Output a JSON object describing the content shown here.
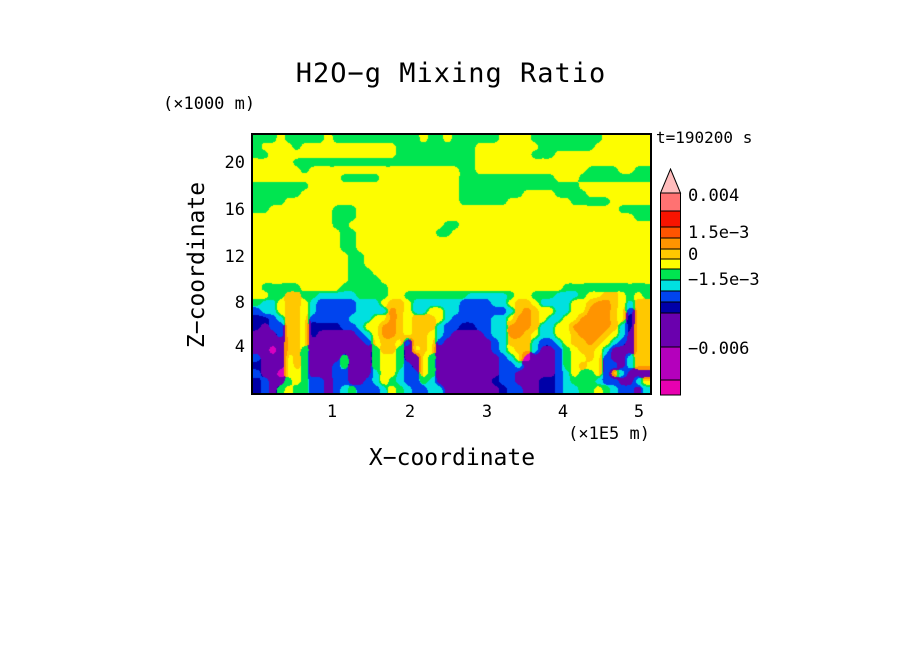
{
  "title": "H2O−g Mixing Ratio",
  "time_label": "t=190200 s",
  "x_axis": {
    "label": "X−coordinate",
    "unit": "(×1E5 m)",
    "ticks": [
      "1",
      "2",
      "3",
      "4",
      "5"
    ]
  },
  "y_axis": {
    "label": "Z−coordinate",
    "unit": "(×1000 m)",
    "ticks": [
      "20",
      "16",
      "12",
      "8",
      "4"
    ]
  },
  "colorbar": {
    "arrow_color": "#ffbcbc",
    "outline_color": "#000000",
    "segments": [
      {
        "color": "#ff7272",
        "h": 18
      },
      {
        "color": "#f81400",
        "h": 16
      },
      {
        "color": "#ff5400",
        "h": 11
      },
      {
        "color": "#ff9400",
        "h": 11
      },
      {
        "color": "#ffc800",
        "h": 10
      },
      {
        "color": "#fdfd00",
        "h": 10
      },
      {
        "color": "#00e550",
        "h": 11
      },
      {
        "color": "#00e0e0",
        "h": 11
      },
      {
        "color": "#0044ee",
        "h": 11
      },
      {
        "color": "#0000a8",
        "h": 11
      },
      {
        "color": "#6a00ae",
        "h": 34
      },
      {
        "color": "#b400bc",
        "h": 33
      },
      {
        "color": "#e800b0",
        "h": 15
      }
    ],
    "labels": [
      "0.004",
      "1.5e−3",
      "0",
      "−1.5e−3",
      "−0.006"
    ]
  },
  "chart_data": {
    "type": "heatmap",
    "title": "H2O-g Mixing Ratio",
    "time": "t=190200 s",
    "xlabel": "X-coordinate (x1E5 m)",
    "zlabel": "Z-coordinate (x1000 m)",
    "x_ticks": [
      1,
      2,
      3,
      4,
      5
    ],
    "z_ticks": [
      4,
      8,
      12,
      16,
      20
    ],
    "x_range": [
      0,
      5.15
    ],
    "z_range": [
      0,
      22
    ],
    "colorbar_levels": [
      0.004,
      0.0015,
      0,
      -0.0015,
      -0.006
    ],
    "palette": {
      "y": {
        "hex": "#fdfd00",
        "range": [
          0,
          0.00075
        ]
      },
      "g": {
        "hex": "#00e550",
        "range": [
          -0.00075,
          0
        ]
      },
      "c": {
        "hex": "#00e0e0",
        "range": [
          -0.0015,
          -0.00075
        ]
      },
      "b": {
        "hex": "#0044ee",
        "range": [
          -0.00225,
          -0.0015
        ]
      },
      "n": {
        "hex": "#0000a8",
        "range": [
          -0.003,
          -0.00225
        ]
      },
      "p": {
        "hex": "#6a00ae",
        "range": [
          -0.0045,
          -0.003
        ]
      },
      "m": {
        "hex": "#d800c0",
        "range": [
          -0.006,
          -0.0045
        ]
      },
      "a": {
        "hex": "#ffc800",
        "range": [
          0.00075,
          0.0015
        ]
      },
      "o": {
        "hex": "#ff9400",
        "range": [
          0.0015,
          0.00225
        ]
      }
    },
    "grid_encoding": "run-length rows, top to bottom; letter = palette key, number = cell count; 50 cols x 33 rows over plot area",
    "grid_cols": 50,
    "grid_rows": 33,
    "grid": [
      "g3 y1 g5 y1 g11 y1 g2 y1 g6 y4 g9 y6",
      "g1 y4 g1 y12 g10 y8 g7 y7",
      "g2 y16 g10 y7 g3 y12",
      "y5 g23 y22",
      "y6 g1 y19 g2 y14 g4 y2 g2",
      "y11 g5 y10 g12 y3 g9",
      "g7 y19 g15 y9",
      "g6 y20 g8 y4 g4 y8",
      "g4 y22 g6 y8 g5 y5",
      "g2 y8 g3 y33 g4",
      "y10 g3 y35 g2",
      "y10 g2 y12 g2 y24",
      "y11 g2 y10 g2 y25",
      "y11 g2 y37",
      "y11 g2 y37",
      "y12 g2 y36",
      "y12 g2 y36",
      "y12 g3 y35",
      "y12 g4 y34",
      "y1 g5 y5 g6 y22 g11",
      "y2 g2 a2 g2 c5 g4 y2 g8 c5 g1 y2 g3 c3 g1 y2 a2 y1 g1 y1 g1",
      "g1 c2 y1 a2 y1 c1 b5 c3 y1 a2 y1 c6 b4 c2 y1 a2 y1 c4 y2 a1 o2 a1 y1 c1 a2",
      "b1 c2 y1 a2 y1 c1 b5 c4 o1 a1 y1 c2 y2 c2 b6 c1 a1 o1 a1 y2 c2 y2 o3 a1 y1 b1 a2",
      "n2 b1 c1 a2 y1 b5 c3 y2 o1 a1 y1 a3 y1 c1 b5 c2 y1 o2 a1 y1 c2 y2 o4 a1 y1 n1 a2",
      "n1 p1 b2 a2 y1 n4 b2 c1 y2 o2 a1 y1 a3 c1 b2 n2 b2 c2 o3 a1 c2 y2 o5 a1 c1 n1 a2",
      "p3 b1 a2 y1 n1 p5 b1 c1 y1 o2 a1 y1 a2 y1 c1 b1 p4 b1 c2 o2 a1 y1 c2 y2 a1 o3 a1 y1 c1 p1 a2",
      "p4 a2 y1 p7 b1 y1 a2 y1 b1 a2 y1 b1 p6 b1 c1 a3 c1 b2 c1 y1 a2 o1 a1 y1 c1 b1 p1 a2",
      "p2 m1 p1 a2 g1 p8 g1 a2 g1 p1 y1 a1 y1 p7 b1 c1 y1 a2 c1 p2 b1 g1 y1 a2 y1 c1 p3 a2",
      "b1 p3 y1 a1 g1 p4 g1 p3 g1 y2 g1 p2 y1 g1 p8 b1 c1 y1 m1 p3 b1 g1 y2 a1 y1 b1 p2 c1 a2",
      "n1 p3 y1 a1 g1 p3 b1 g1 p3 g1 y2 g1 b1 p1 y1 g1 p8 b2 c1 p4 b1 g1 y1 a1 y2 b2 p1 c1 a2",
      "b1 p2 m1 y2 g1 p3 b2 p3 c1 y2 c1 b2 y1 g1 p8 b2 p5 b1 c1 y1 g2 y1 b1 a1 c1 p2",
      "n1 b1 p2 g1 y1 g1 b2 p1 b2 p2 b1 c1 y1 g1 c1 b2 g1 c1 p7 n1 b2 p3 n2 b1 c1 g3 c1 b2 p2 c1 y1",
      "n1 b1 p1 g1 y1 g2 b2 p1 b1 c1 g1 b3 c1 y1 g1 c1 b2 c2 p7 n1 b2 p2 n2 b1 c2 g2 y1 g1 c1 b2 p1 c1"
    ]
  }
}
